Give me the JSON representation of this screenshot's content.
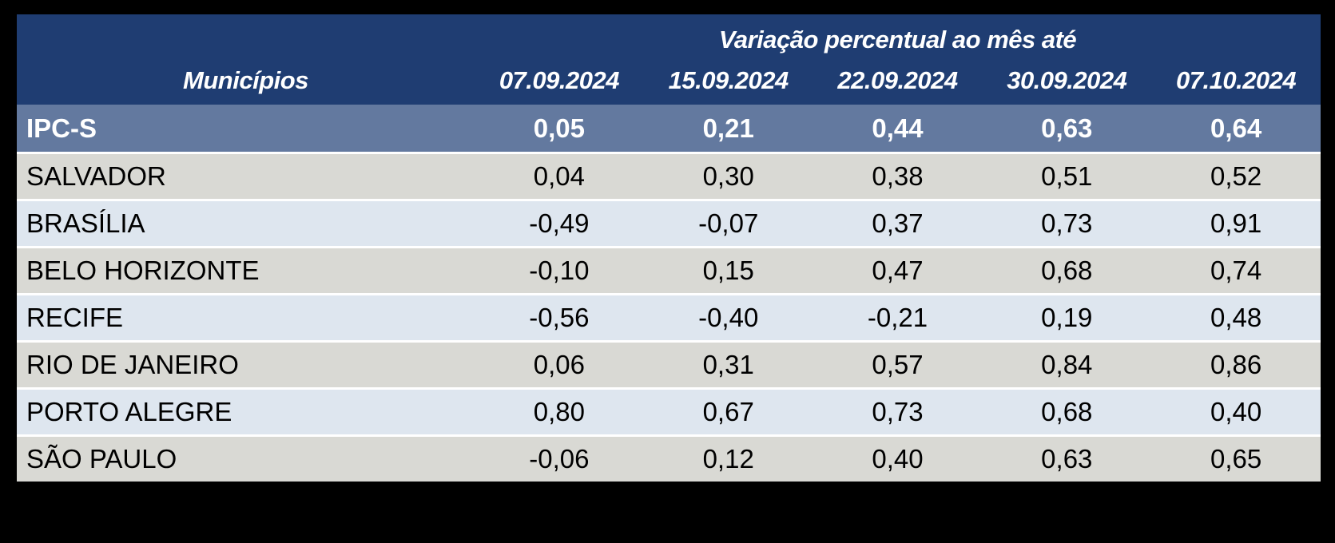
{
  "colors": {
    "page_bg": "#000000",
    "header_bg": "#1F3D72",
    "summary_bg": "#63799F",
    "row_gray": "#D9D9D4",
    "row_blue": "#DEE6EF",
    "separator": "#FFFFFF",
    "header_text": "#FFFFFF",
    "body_text": "#000000"
  },
  "chart_data": {
    "type": "table",
    "group_header": "Variação percentual ao mês até",
    "row_header_label": "Municípios",
    "date_columns": [
      "07.09.2024",
      "15.09.2024",
      "22.09.2024",
      "30.09.2024",
      "07.10.2024"
    ],
    "summary": {
      "label": "IPC-S",
      "values": [
        "0,05",
        "0,21",
        "0,44",
        "0,63",
        "0,64"
      ]
    },
    "rows": [
      {
        "label": "SALVADOR",
        "values": [
          "0,04",
          "0,30",
          "0,38",
          "0,51",
          "0,52"
        ]
      },
      {
        "label": "BRASÍLIA",
        "values": [
          "-0,49",
          "-0,07",
          "0,37",
          "0,73",
          "0,91"
        ]
      },
      {
        "label": "BELO HORIZONTE",
        "values": [
          "-0,10",
          "0,15",
          "0,47",
          "0,68",
          "0,74"
        ]
      },
      {
        "label": "RECIFE",
        "values": [
          "-0,56",
          "-0,40",
          "-0,21",
          "0,19",
          "0,48"
        ]
      },
      {
        "label": "RIO DE JANEIRO",
        "values": [
          "0,06",
          "0,31",
          "0,57",
          "0,84",
          "0,86"
        ]
      },
      {
        "label": "PORTO ALEGRE",
        "values": [
          "0,80",
          "0,67",
          "0,73",
          "0,68",
          "0,40"
        ]
      },
      {
        "label": "SÃO PAULO",
        "values": [
          "-0,06",
          "0,12",
          "0,40",
          "0,63",
          "0,65"
        ]
      }
    ]
  }
}
